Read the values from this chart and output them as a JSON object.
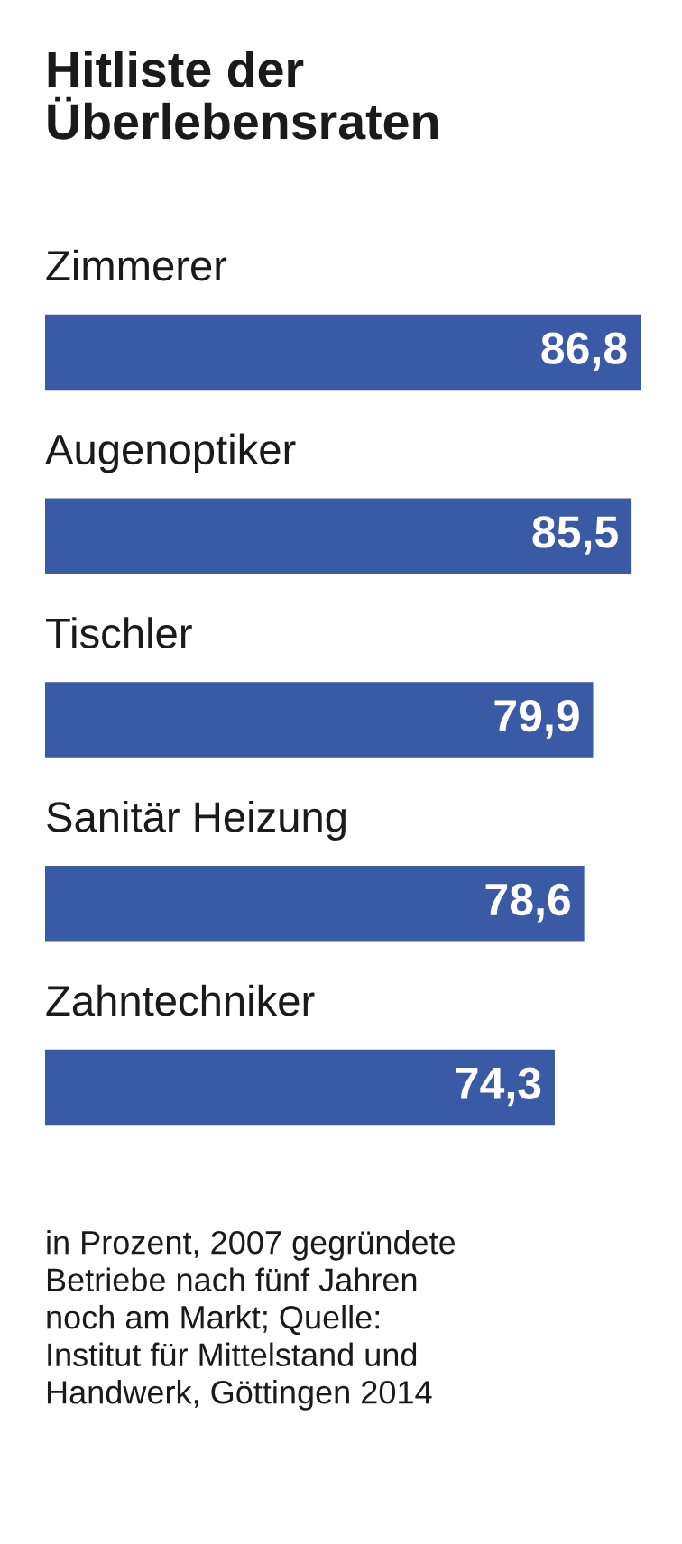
{
  "chart_data": {
    "type": "bar",
    "orientation": "horizontal",
    "title": "Hitliste der\nÜberlebensraten",
    "categories": [
      "Zimmerer",
      "Augenoptiker",
      "Tischler",
      "Sanitär Heizung",
      "Zahntechniker"
    ],
    "values": [
      86.8,
      85.5,
      79.9,
      78.6,
      74.3
    ],
    "value_labels": [
      "86,8",
      "85,5",
      "79,9",
      "78,6",
      "74,3"
    ],
    "color": "#3a5aa6",
    "annotations": [
      "in Prozent, 2007 gegründete\nBetriebe nach fünf Jahren\nnoch am Markt; Quelle:\nInstitut für Mittelstand und\nHandwerk, Göttingen 2014"
    ]
  }
}
